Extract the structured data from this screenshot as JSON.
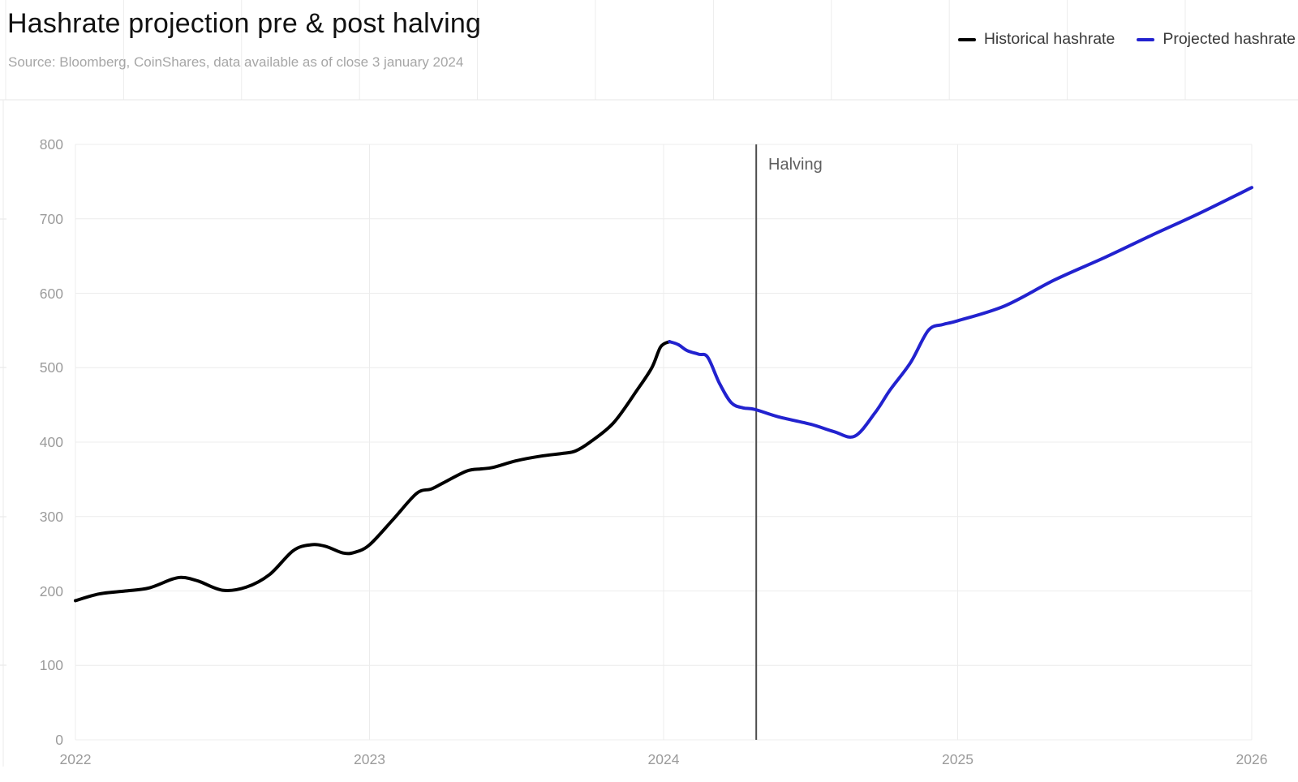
{
  "header": {
    "title": "Hashrate projection pre & post halving",
    "source": "Source: Bloomberg, CoinShares, data available as of close 3 january 2024"
  },
  "colors": {
    "historical": "#000000",
    "projected": "#2222cf",
    "grid": "#ececec",
    "header_grid": "#ececec",
    "divider": "#e7e7e7",
    "axis_text": "#9b9b9b",
    "halving_line": "#4d4d4d"
  },
  "chart_data": {
    "type": "line",
    "title": "Hashrate projection pre & post halving",
    "xlabel": "",
    "ylabel": "",
    "xlim": [
      2022,
      2026
    ],
    "ylim": [
      0,
      800
    ],
    "x_ticks": [
      "2022",
      "2023",
      "2024",
      "2025",
      "2026"
    ],
    "y_ticks": [
      0,
      100,
      200,
      300,
      400,
      500,
      600,
      700,
      800
    ],
    "grid": "on",
    "legend_position": "top-right",
    "annotation": {
      "label": "Halving",
      "x": 2024.315
    },
    "series": [
      {
        "name": "Historical hashrate",
        "color": "#000000",
        "points": [
          [
            2022.0,
            187
          ],
          [
            2022.08,
            196
          ],
          [
            2022.17,
            200
          ],
          [
            2022.25,
            204
          ],
          [
            2022.33,
            216
          ],
          [
            2022.37,
            218
          ],
          [
            2022.42,
            213
          ],
          [
            2022.5,
            201
          ],
          [
            2022.58,
            205
          ],
          [
            2022.66,
            222
          ],
          [
            2022.74,
            254
          ],
          [
            2022.8,
            262
          ],
          [
            2022.85,
            260
          ],
          [
            2022.91,
            251
          ],
          [
            2022.95,
            252
          ],
          [
            2023.0,
            262
          ],
          [
            2023.08,
            296
          ],
          [
            2023.16,
            331
          ],
          [
            2023.21,
            337
          ],
          [
            2023.25,
            345
          ],
          [
            2023.33,
            361
          ],
          [
            2023.38,
            364
          ],
          [
            2023.42,
            366
          ],
          [
            2023.5,
            375
          ],
          [
            2023.58,
            381
          ],
          [
            2023.66,
            385
          ],
          [
            2023.7,
            388
          ],
          [
            2023.75,
            400
          ],
          [
            2023.83,
            426
          ],
          [
            2023.91,
            470
          ],
          [
            2023.96,
            500
          ],
          [
            2023.99,
            528
          ],
          [
            2024.02,
            535
          ]
        ]
      },
      {
        "name": "Projected hashrate",
        "color": "#2222cf",
        "points": [
          [
            2024.02,
            535
          ],
          [
            2024.05,
            531
          ],
          [
            2024.08,
            523
          ],
          [
            2024.12,
            518
          ],
          [
            2024.15,
            514
          ],
          [
            2024.19,
            479
          ],
          [
            2024.23,
            453
          ],
          [
            2024.27,
            446
          ],
          [
            2024.31,
            444
          ],
          [
            2024.39,
            434
          ],
          [
            2024.5,
            424
          ],
          [
            2024.58,
            414
          ],
          [
            2024.65,
            408
          ],
          [
            2024.72,
            440
          ],
          [
            2024.77,
            470
          ],
          [
            2024.84,
            507
          ],
          [
            2024.9,
            550
          ],
          [
            2024.95,
            558
          ],
          [
            2025.0,
            563
          ],
          [
            2025.16,
            583
          ],
          [
            2025.33,
            618
          ],
          [
            2025.5,
            648
          ],
          [
            2025.66,
            678
          ],
          [
            2025.82,
            707
          ],
          [
            2026.0,
            742
          ]
        ]
      }
    ]
  }
}
